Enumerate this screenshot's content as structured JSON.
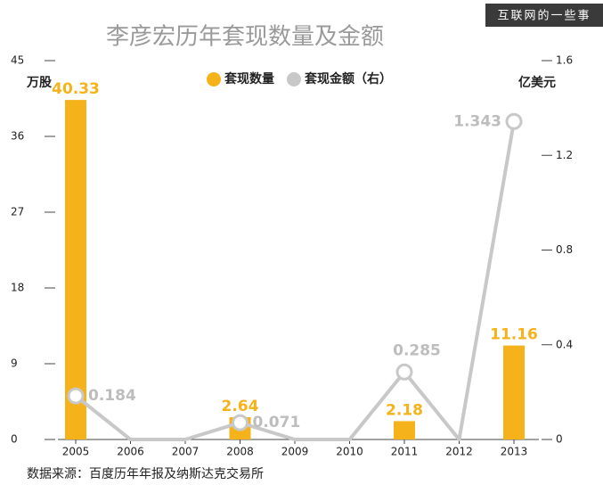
{
  "chart_data": {
    "type": "bar_line",
    "title": "李彦宏历年套现数量及金额",
    "watermark": "互联网的一些事",
    "y_label": "万股",
    "y2_label": "亿美元",
    "source": "数据来源：百度历年年报及纳斯达克交易所",
    "categories": [
      "2005",
      "2006",
      "2007",
      "2008",
      "2009",
      "2010",
      "2011",
      "2012",
      "2013"
    ],
    "series": [
      {
        "name": "套现数量",
        "type": "bar",
        "color": "#f6b21b",
        "values": [
          40.33,
          0,
          0,
          2.64,
          0,
          0,
          2.18,
          0,
          11.16
        ]
      },
      {
        "name": "套现金额（右）",
        "type": "line",
        "axis": "y2",
        "color": "#c8c8c8",
        "values": [
          0.184,
          0,
          0,
          0.071,
          0,
          0,
          0.285,
          0,
          1.343
        ]
      }
    ],
    "ylim": [
      0,
      45
    ],
    "yticks": [
      0,
      9,
      18,
      27,
      36,
      45
    ],
    "y2lim": [
      0,
      1.6
    ],
    "y2ticks": [
      0,
      0.4,
      0.8,
      1.2,
      1.6
    ]
  }
}
